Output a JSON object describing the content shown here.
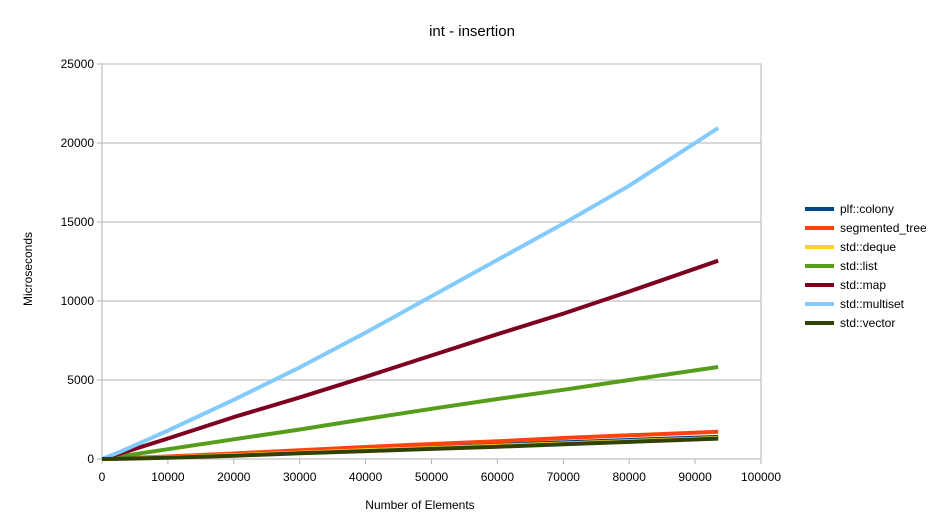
{
  "chart_data": {
    "type": "line",
    "title": "int - insertion",
    "xlabel": "Number of Elements",
    "ylabel": "Microseconds",
    "xlim": [
      0,
      100000
    ],
    "ylim": [
      0,
      25000
    ],
    "x_ticks": [
      "0",
      "10000",
      "20000",
      "30000",
      "40000",
      "50000",
      "60000",
      "70000",
      "80000",
      "90000",
      "100000"
    ],
    "y_ticks": [
      "0",
      "5000",
      "10000",
      "15000",
      "20000",
      "25000"
    ],
    "grid": "horizontal",
    "legend_position": "right",
    "x": [
      0,
      3000,
      10000,
      20000,
      30000,
      40000,
      50000,
      60000,
      70000,
      80000,
      93500
    ],
    "series": [
      {
        "name": "plf::colony",
        "color": "#004586",
        "values": [
          0,
          30,
          120,
          290,
          450,
          600,
          740,
          900,
          1050,
          1200,
          1400
        ]
      },
      {
        "name": "segmented_tree",
        "color": "#ff420e",
        "values": [
          0,
          40,
          160,
          350,
          560,
          760,
          950,
          1120,
          1330,
          1500,
          1720
        ]
      },
      {
        "name": "std::deque",
        "color": "#ffd320",
        "values": [
          0,
          25,
          100,
          250,
          400,
          550,
          690,
          840,
          980,
          1130,
          1330
        ]
      },
      {
        "name": "std::list",
        "color": "#579d1c",
        "values": [
          0,
          180,
          620,
          1250,
          1870,
          2530,
          3180,
          3800,
          4380,
          5000,
          5820
        ]
      },
      {
        "name": "std::map",
        "color": "#7e0021",
        "values": [
          0,
          380,
          1300,
          2650,
          3900,
          5200,
          6550,
          7900,
          9200,
          10600,
          12550
        ]
      },
      {
        "name": "std::multiset",
        "color": "#83caff",
        "values": [
          0,
          500,
          1800,
          3750,
          5800,
          8000,
          10300,
          12600,
          14900,
          17300,
          20950
        ]
      },
      {
        "name": "std::vector",
        "color": "#314004",
        "values": [
          0,
          20,
          80,
          210,
          360,
          500,
          640,
          780,
          930,
          1080,
          1290
        ]
      }
    ]
  }
}
